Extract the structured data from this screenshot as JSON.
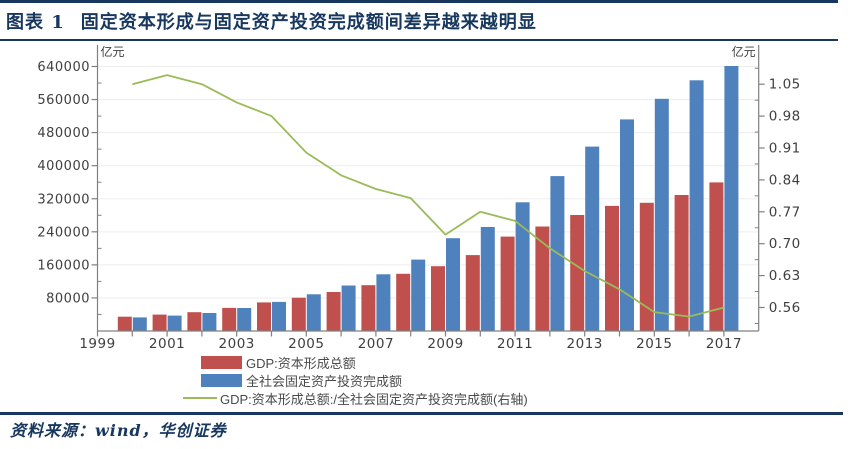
{
  "page": {
    "title_prefix": "图表 1",
    "title": "固定资本形成与固定资产投资完成额间差异越来越明显",
    "source_note": "资料来源：wind，华创证券",
    "accent_color": "#17375E"
  },
  "chart_data": {
    "type": "bar",
    "subtype": "combo bar + line (dual axis)",
    "categories": [
      "2000",
      "2001",
      "2002",
      "2003",
      "2004",
      "2005",
      "2006",
      "2007",
      "2008",
      "2009",
      "2010",
      "2011",
      "2012",
      "2013",
      "2014",
      "2015",
      "2016",
      "2017"
    ],
    "series": [
      {
        "name": "GDP:资本形成总额",
        "type": "bar",
        "axis": "left",
        "color": "#C0504D",
        "values": [
          34500,
          39800,
          45600,
          56000,
          69200,
          80600,
          94400,
          110900,
          138300,
          156700,
          183600,
          228300,
          252800,
          280800,
          302700,
          310200,
          329100,
          359500
        ]
      },
      {
        "name": "全社会固定资产投资完成额",
        "type": "bar",
        "axis": "left",
        "color": "#4F81BD",
        "values": [
          32900,
          37200,
          43500,
          55600,
          70500,
          88800,
          110000,
          137300,
          172800,
          224600,
          251700,
          311500,
          374700,
          446300,
          512000,
          561800,
          606500,
          641200
        ]
      },
      {
        "name": "GDP:资本形成总额:/全社会固定资产投资完成额(右轴)",
        "type": "line",
        "axis": "right",
        "color": "#9BBB59",
        "values": [
          1.05,
          1.07,
          1.05,
          1.01,
          0.98,
          0.9,
          0.85,
          0.82,
          0.8,
          0.72,
          0.77,
          0.75,
          0.69,
          0.64,
          0.6,
          0.55,
          0.54,
          0.56
        ]
      }
    ],
    "left_axis": {
      "title": "亿元",
      "min": 0,
      "max": 640000,
      "tick_step": 80000,
      "ticks": [
        80000,
        160000,
        240000,
        320000,
        400000,
        480000,
        560000,
        640000
      ]
    },
    "right_axis": {
      "title": "亿元",
      "tick_step": 0.07,
      "ticks": [
        0.56,
        0.63,
        0.7,
        0.77,
        0.84,
        0.91,
        0.98,
        1.05
      ]
    },
    "x_axis": {
      "tick_labels": [
        "1999",
        "2001",
        "2003",
        "2005",
        "2007",
        "2009",
        "2011",
        "2013",
        "2015",
        "2017"
      ]
    },
    "grid": "horizontal light gray at left-axis ticks",
    "legend_position": "bottom",
    "colors": {
      "bar_red": "#C0504D",
      "bar_blue": "#4F81BD",
      "line_green": "#9BBB59",
      "axis_text": "#3F3F3F",
      "spine": "#808080",
      "grid": "#EDEDED"
    }
  }
}
